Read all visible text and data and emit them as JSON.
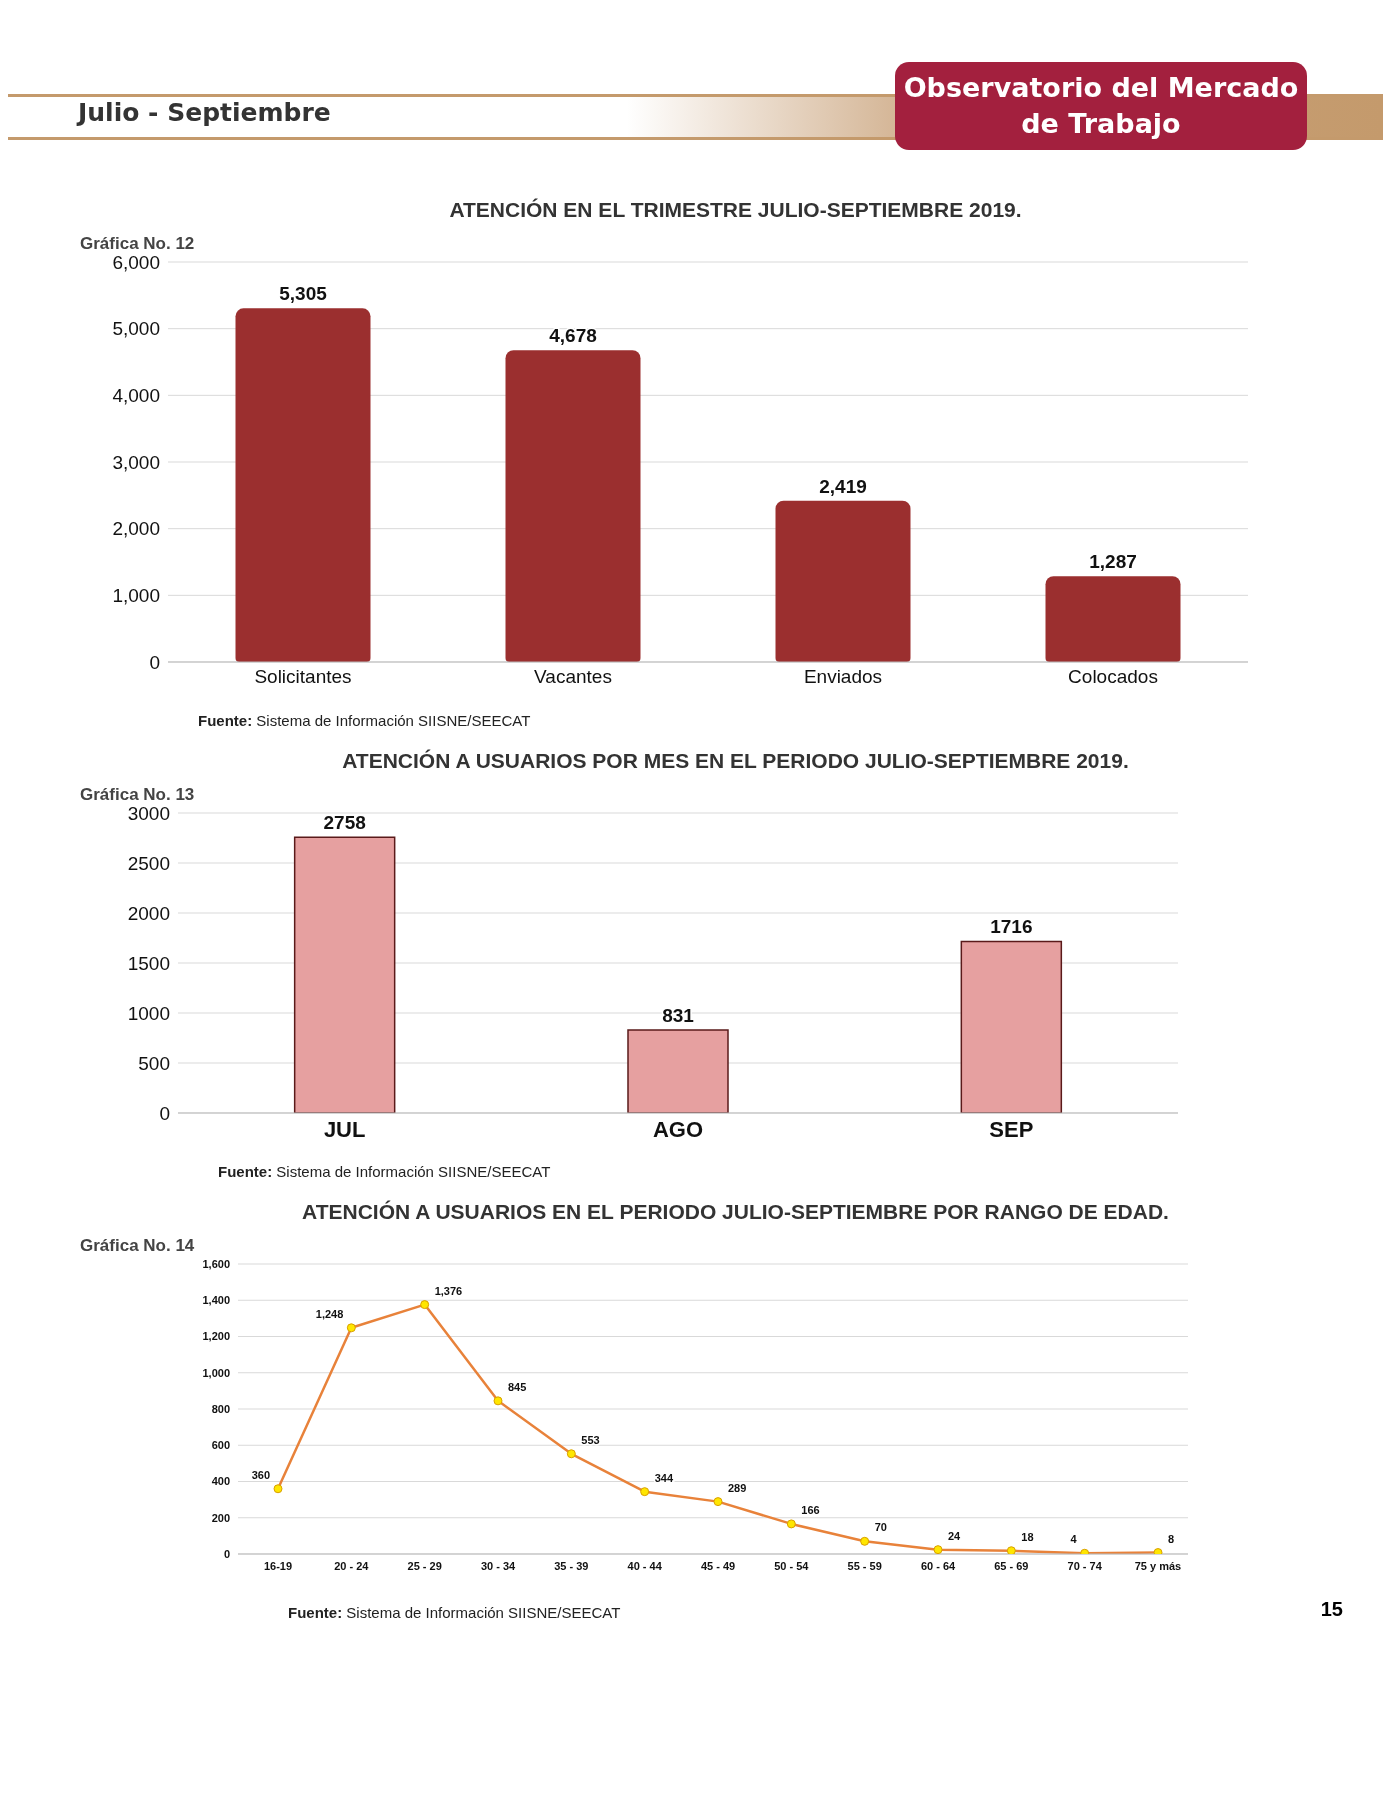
{
  "chart_data": [
    {
      "type": "bar",
      "title": "ATENCIÓN EN EL TRIMESTRE JULIO-SEPTIEMBRE 2019.",
      "annotations": [
        "Julio - Septiembre",
        "Observatorio del Mercado de Trabajo",
        "Gráfica No. 12",
        "Fuente: Sistema de Información SIISNE/SEECAT"
      ],
      "categories": [
        "Solicitantes",
        "Vacantes",
        "Enviados",
        "Colocados"
      ],
      "values": [
        5305,
        4678,
        2419,
        1287
      ],
      "value_labels": [
        "5,305",
        "4,678",
        "2,419",
        "1,287"
      ],
      "color": "#9b2f2f",
      "ylim": [
        0,
        6000
      ],
      "yticks": [
        0,
        {
          "value": 1000,
          "label": "1,000"
        },
        {
          "value": 2000,
          "label": "2,000"
        },
        {
          "value": 3000,
          "label": "3,000"
        },
        {
          "value": 4000,
          "label": "4,000"
        },
        {
          "value": 5000,
          "label": "5,000"
        },
        {
          "value": 6000,
          "label": "6,000"
        }
      ],
      "grid": "y"
    },
    {
      "type": "bar",
      "title": "ATENCIÓN A USUARIOS POR MES EN EL PERIODO JULIO-SEPTIEMBRE 2019.",
      "annotations": [
        "Gráfica No. 13",
        "Fuente: Sistema de Información SIISNE/SEECAT"
      ],
      "categories": [
        "JUL",
        "AGO",
        "SEP"
      ],
      "values": [
        2758,
        831,
        1716
      ],
      "data_labels": true,
      "color": "#e6a0a0",
      "ylim": [
        0,
        3000
      ],
      "yticks": [
        0,
        500,
        1000,
        1500,
        2000,
        2500,
        3000
      ],
      "grid": "y"
    },
    {
      "type": "line",
      "title": "ATENCIÓN A USUARIOS EN EL PERIODO JULIO-SEPTIEMBRE POR RANGO DE EDAD.",
      "annotations": [
        "Gráfica No. 14",
        "Fuente: Sistema de Información SIISNE/SEECAT",
        "15"
      ],
      "categories": [
        "16-19",
        "20 - 24",
        "25 - 29",
        "30 - 34",
        "35 - 39",
        "40 - 44",
        "45 - 49",
        "50 - 54",
        "55 - 59",
        "60 - 64",
        "65 - 69",
        "70 - 74",
        "75 y más"
      ],
      "values": [
        360,
        1248,
        1376,
        845,
        553,
        344,
        289,
        166,
        70,
        24,
        18,
        4,
        8
      ],
      "value_labels": [
        "360",
        "1,248",
        "1,376",
        "845",
        "553",
        "344",
        "289",
        "166",
        "70",
        "24",
        "18",
        "4",
        "8"
      ],
      "color": "#e8823a",
      "marker": "circle",
      "ylim": [
        0,
        1600
      ],
      "yticks": [
        0,
        200,
        400,
        600,
        800,
        {
          "value": 1000,
          "label": "1,000"
        },
        {
          "value": 1200,
          "label": "1,200"
        },
        {
          "value": 1400,
          "label": "1,400"
        },
        {
          "value": 1600,
          "label": "1,600"
        }
      ],
      "grid": "y"
    }
  ]
}
